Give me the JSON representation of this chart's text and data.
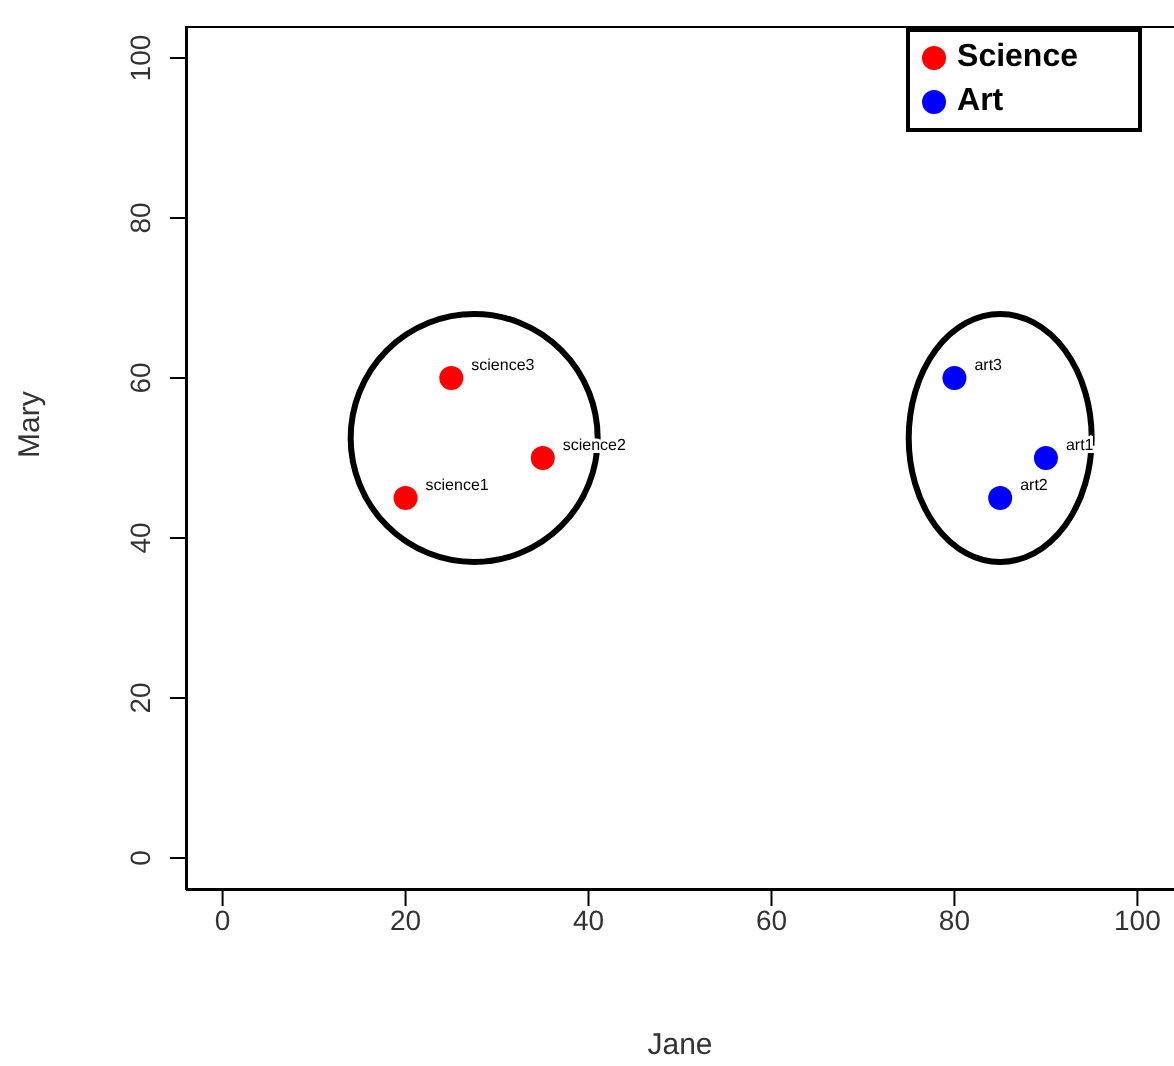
{
  "chart_data": {
    "type": "scatter",
    "xlabel": "Jane",
    "ylabel": "Mary",
    "series": [
      {
        "name": "Science",
        "color": "#ff0000",
        "x": [
          20,
          35,
          25
        ],
        "values": [
          45,
          50,
          60
        ]
      },
      {
        "name": "Art",
        "color": "#0000ff",
        "x": [
          90,
          85,
          80
        ],
        "values": [
          50,
          45,
          60
        ]
      }
    ],
    "annotations": [
      {
        "text": "science1",
        "x": 20,
        "y": 45
      },
      {
        "text": "science2",
        "x": 35,
        "y": 50
      },
      {
        "text": "science3",
        "x": 25,
        "y": 60
      },
      {
        "text": "art1",
        "x": 90,
        "y": 50
      },
      {
        "text": "art2",
        "x": 85,
        "y": 45
      },
      {
        "text": "art3",
        "x": 80,
        "y": 60
      }
    ],
    "xlim": [
      -4,
      104
    ],
    "ylim": [
      -4,
      104
    ],
    "xticks": [
      0,
      20,
      40,
      60,
      80,
      100
    ],
    "yticks": [
      0,
      20,
      40,
      60,
      80,
      100
    ],
    "legend": "top right",
    "marker": "circle",
    "grid": false
  }
}
